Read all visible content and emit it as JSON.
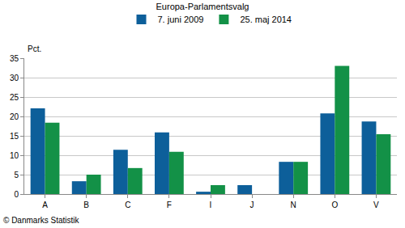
{
  "chart_data": {
    "type": "bar",
    "title": "Europa-Parlamentsvalg",
    "y_label": "Pct.",
    "annotations": [
      "© Danmarks Statistik"
    ],
    "categories": [
      "A",
      "B",
      "C",
      "F",
      "I",
      "J",
      "N",
      "O",
      "V"
    ],
    "series": [
      {
        "name": "7. juni 2009",
        "color": "#0d5f9a",
        "values": [
          22.1,
          3.3,
          11.4,
          15.9,
          0.6,
          2.3,
          8.3,
          20.8,
          18.7
        ]
      },
      {
        "name": "25. maj 2014",
        "color": "#139147",
        "values": [
          18.4,
          5.0,
          6.7,
          10.9,
          2.3,
          null,
          8.3,
          33.0,
          15.4
        ]
      }
    ],
    "ylim": [
      0,
      35
    ],
    "yticks": [
      0,
      5,
      10,
      15,
      20,
      25,
      30,
      35
    ],
    "grid": true,
    "legend": "top"
  }
}
